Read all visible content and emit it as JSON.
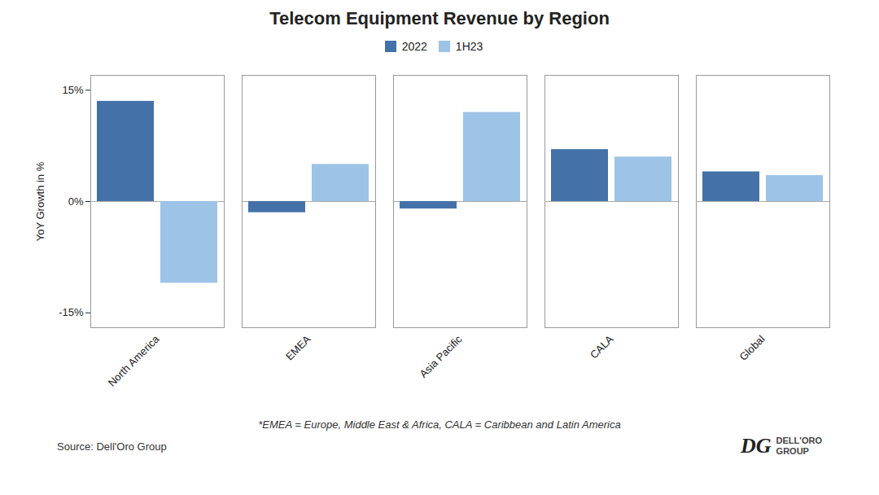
{
  "chart_data": {
    "type": "bar",
    "title": "Telecom Equipment Revenue by Region",
    "categories": [
      "North America",
      "EMEA",
      "Asia Pacific",
      "CALA",
      "Global"
    ],
    "series": [
      {
        "name": "2022",
        "color": "#4472a8",
        "values": [
          13.5,
          -1.5,
          -1.0,
          7.0,
          4.0
        ]
      },
      {
        "name": "1H23",
        "color": "#9dc3e6",
        "values": [
          -11.0,
          5.0,
          12.0,
          6.0,
          3.5
        ]
      }
    ],
    "ylabel": "YoY Growth in %",
    "ylim": [
      -17,
      17
    ],
    "yticks": [
      {
        "value": -15,
        "label": "-15%"
      },
      {
        "value": 0,
        "label": "0%"
      },
      {
        "value": 15,
        "label": "15%"
      }
    ],
    "grid": false,
    "legend": "top",
    "footnote": "*EMEA = Europe, Middle East & Africa, CALA = Caribbean and Latin America",
    "source": "Source: Dell'Oro Group",
    "annotations": [
      "DG",
      "DELL'ORO",
      "GROUP"
    ]
  }
}
